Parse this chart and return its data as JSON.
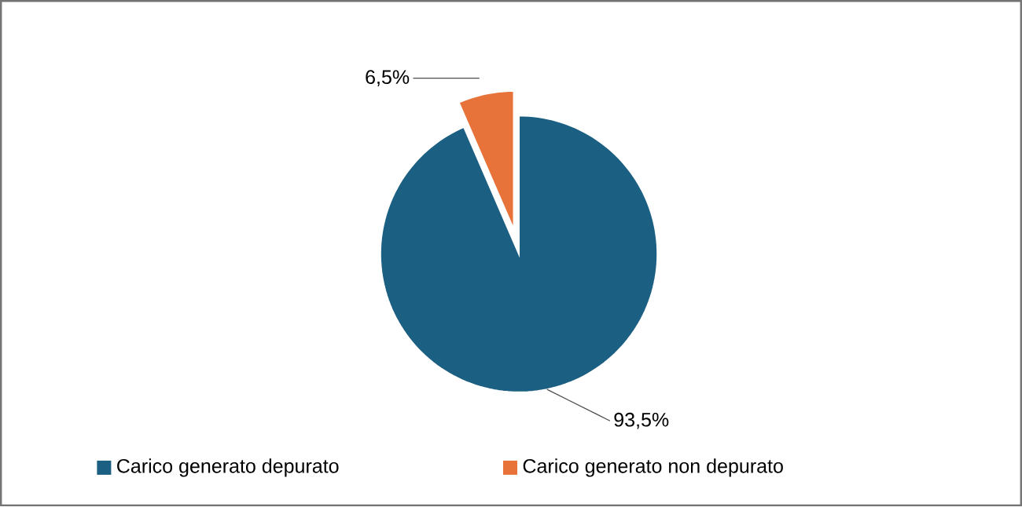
{
  "chart_data": {
    "type": "pie",
    "categories": [
      "Carico generato depurato",
      "Carico generato  non depurato"
    ],
    "values": [
      93.5,
      6.5
    ],
    "colors": [
      "#1b5f82",
      "#e8733a"
    ],
    "value_labels": [
      "93,5%",
      "6,5%"
    ],
    "legend": "bottom"
  }
}
